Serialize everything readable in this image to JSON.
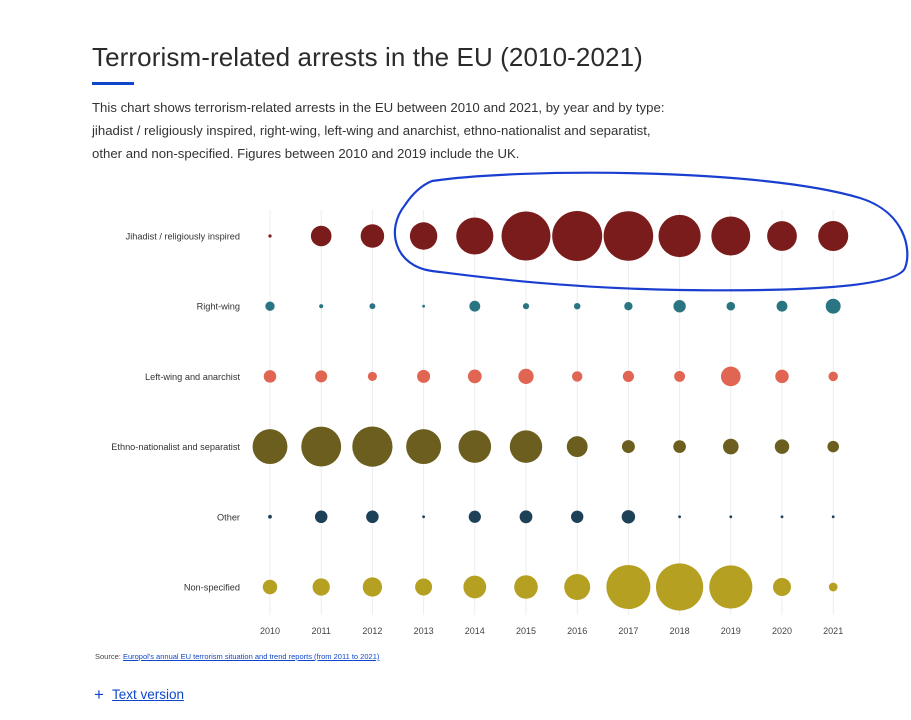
{
  "title": "Terrorism-related arrests in the EU (2010-2021)",
  "description": "This chart shows terrorism-related arrests in the EU between 2010 and 2021, by year and by type: jihadist / religiously inspired, right-wing, left-wing and anarchist, ethno-nationalist and separatist, other and non-specified. Figures between 2010 and 2019 include the UK.",
  "source": {
    "prefix": "Source: ",
    "link_text": "Europol's annual EU terrorism situation and trend reports (from 2011 to 2021)"
  },
  "text_version": {
    "icon": "plus-icon",
    "label": "Text version"
  },
  "annotation": {
    "color": "#1a3fd0",
    "note": "hand-drawn ellipse highlighting jihadist arrests 2013-2021"
  },
  "chart_data": {
    "type": "bubble-grid",
    "years": [
      "2010",
      "2011",
      "2012",
      "2013",
      "2014",
      "2015",
      "2016",
      "2017",
      "2018",
      "2019",
      "2020",
      "2021"
    ],
    "series": [
      {
        "name": "Jihadist / religiously inspired",
        "color": "#7b1c1c",
        "values": [
          3,
          122,
          159,
          216,
          395,
          687,
          718,
          705,
          511,
          436,
          254,
          260
        ]
      },
      {
        "name": "Right-wing",
        "color": "#2a7582",
        "values": [
          25,
          5,
          10,
          2,
          34,
          11,
          12,
          20,
          44,
          21,
          34,
          64
        ]
      },
      {
        "name": "Left-wing and anarchist",
        "color": "#e06552",
        "values": [
          45,
          42,
          24,
          49,
          54,
          67,
          31,
          36,
          34,
          111,
          52,
          26
        ]
      },
      {
        "name": "Ethno-nationalist and separatist",
        "color": "#6b5e1e",
        "values": [
          349,
          457,
          465,
          350,
          305,
          302,
          125,
          48,
          46,
          70,
          60,
          38
        ]
      },
      {
        "name": "Other",
        "color": "#1d4157",
        "values": [
          4,
          45,
          45,
          2,
          43,
          47,
          44,
          52,
          1,
          1,
          1,
          2
        ]
      },
      {
        "name": "Non-specified",
        "color": "#b5a022",
        "values": [
          60,
          86,
          107,
          83,
          149,
          160,
          194,
          558,
          640,
          536,
          93,
          22
        ]
      }
    ]
  }
}
